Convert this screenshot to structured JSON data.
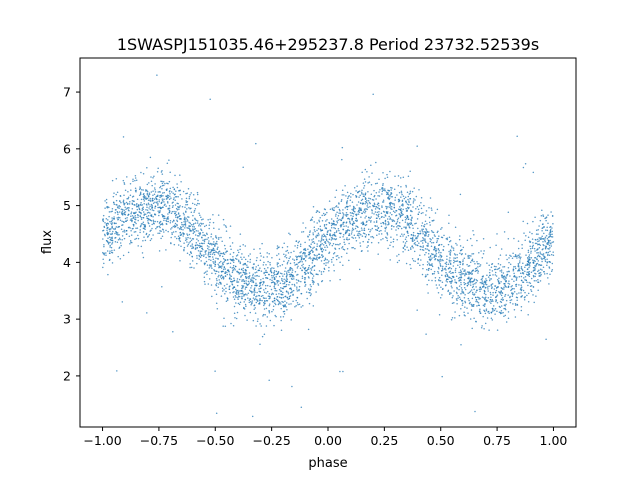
{
  "chart_data": {
    "type": "scatter",
    "title": "1SWASPJ151035.46+295237.8 Period 23732.52539s",
    "xlabel": "phase",
    "ylabel": "flux",
    "xlim": [
      -1.1,
      1.1
    ],
    "ylim": [
      1.1,
      7.6
    ],
    "grid": false,
    "marker_color": "#1f77b4",
    "x_ticks": [
      -1.0,
      -0.75,
      -0.5,
      -0.25,
      0.0,
      0.25,
      0.5,
      0.75,
      1.0
    ],
    "x_tick_labels": [
      "−1.00",
      "−0.75",
      "−0.50",
      "−0.25",
      "0.00",
      "0.25",
      "0.50",
      "0.75",
      "1.00"
    ],
    "y_ticks": [
      2,
      3,
      4,
      5,
      6,
      7
    ],
    "y_tick_labels": [
      "2",
      "3",
      "4",
      "5",
      "6",
      "7"
    ],
    "series": [
      {
        "phase": [
          -1.0,
          -0.9,
          -0.8,
          -0.7,
          -0.6,
          -0.5,
          -0.4,
          -0.3,
          -0.2,
          -0.1,
          0.0,
          0.1,
          0.2,
          0.3,
          0.4,
          0.5,
          0.6,
          0.7,
          0.8,
          0.9,
          1.0
        ],
        "mean_flux": [
          4.45,
          4.8,
          4.95,
          4.92,
          4.6,
          4.05,
          3.7,
          3.55,
          3.6,
          3.95,
          4.45,
          4.8,
          4.95,
          4.9,
          4.55,
          4.05,
          3.65,
          3.5,
          3.6,
          3.95,
          4.45
        ],
        "scatter": 0.32
      }
    ]
  }
}
